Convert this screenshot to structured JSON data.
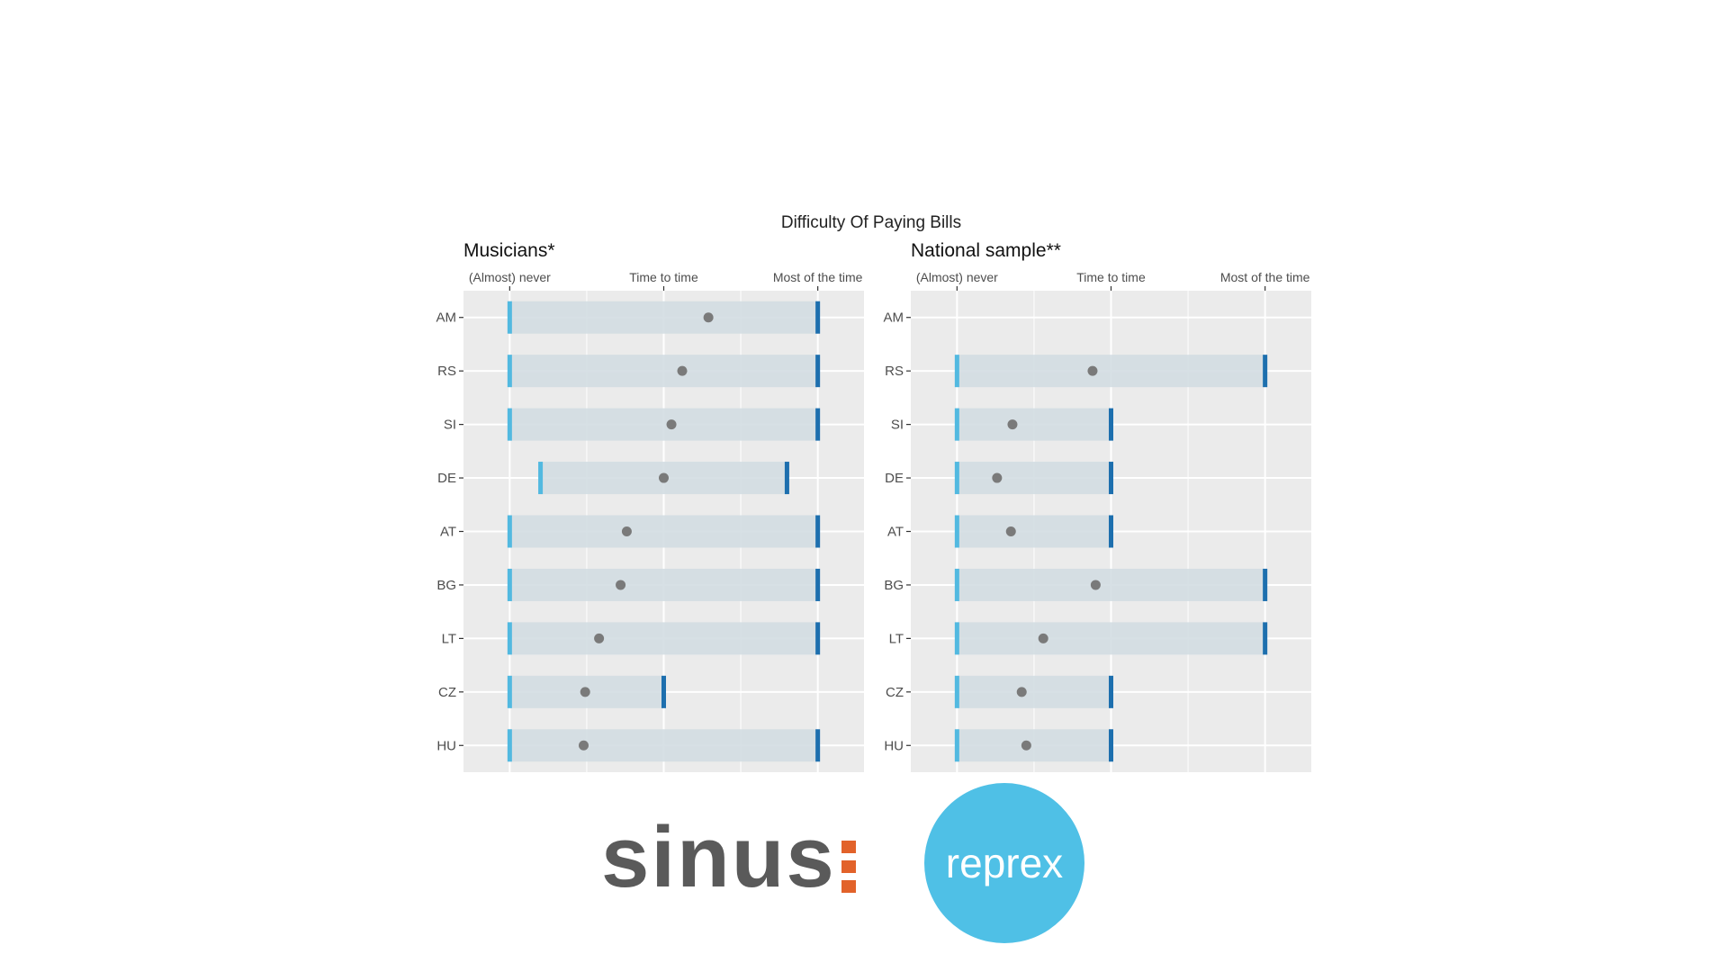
{
  "figure": {
    "title": "Difficulty Of Paying Bills"
  },
  "chart_data": [
    {
      "type": "range-dot",
      "title": "Musicians*",
      "x_tick_labels": [
        "(Almost) never",
        "Time to time",
        "Most of the time"
      ],
      "xlim": [
        0.7,
        3.3
      ],
      "categories": [
        "AM",
        "RS",
        "SI",
        "DE",
        "AT",
        "BG",
        "LT",
        "CZ",
        "HU"
      ],
      "ranges": [
        [
          1,
          3
        ],
        [
          1,
          3
        ],
        [
          1,
          3
        ],
        [
          1.2,
          2.8
        ],
        [
          1,
          3
        ],
        [
          1,
          3
        ],
        [
          1,
          3
        ],
        [
          1,
          2
        ],
        [
          1,
          3
        ]
      ],
      "points": [
        2.29,
        2.12,
        2.05,
        2.0,
        1.76,
        1.72,
        1.58,
        1.49,
        1.48
      ]
    },
    {
      "type": "range-dot",
      "title": "National sample**",
      "x_tick_labels": [
        "(Almost) never",
        "Time to time",
        "Most of the time"
      ],
      "xlim": [
        0.7,
        3.3
      ],
      "categories": [
        "AM",
        "RS",
        "SI",
        "DE",
        "AT",
        "BG",
        "LT",
        "CZ",
        "HU"
      ],
      "ranges": [
        null,
        [
          1,
          3
        ],
        [
          1,
          2
        ],
        [
          1,
          2
        ],
        [
          1,
          2
        ],
        [
          1,
          3
        ],
        [
          1,
          3
        ],
        [
          1,
          2
        ],
        [
          1,
          2
        ]
      ],
      "points": [
        null,
        1.88,
        1.36,
        1.26,
        1.35,
        1.9,
        1.56,
        1.42,
        1.45
      ]
    }
  ],
  "colors": {
    "panel_bg": "#ebebeb",
    "grid": "#ffffff",
    "range_bar": "#d3dde2",
    "range_low": "#52b9e0",
    "range_high": "#1d6fae",
    "point": "#7a7a7a",
    "axis_text": "#4d4d4d"
  },
  "logos": {
    "sinus": "sinus",
    "reprex": "reprex"
  }
}
